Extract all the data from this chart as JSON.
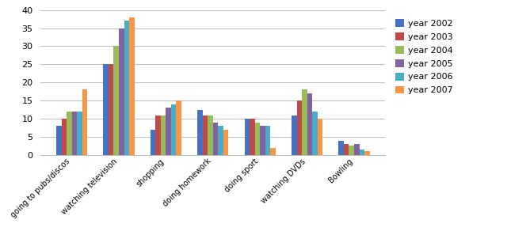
{
  "categories": [
    "going to pubs/discos",
    "watching television",
    "shopping",
    "doing homework",
    "doing sport",
    "watching DVDs",
    "Bowling"
  ],
  "series": {
    "year 2002": [
      8,
      25,
      7,
      12.5,
      10,
      11,
      4
    ],
    "year 2003": [
      10,
      25,
      11,
      11,
      10,
      15,
      3
    ],
    "year 2004": [
      12,
      30,
      11,
      11,
      9,
      18,
      2.5
    ],
    "year 2005": [
      12,
      35,
      13,
      9,
      8,
      17,
      3
    ],
    "year 2006": [
      12,
      37,
      14,
      8,
      8,
      12,
      1.5
    ],
    "year 2007": [
      18,
      38,
      15,
      7,
      2,
      10,
      1
    ]
  },
  "colors": {
    "year 2002": "#4472C4",
    "year 2003": "#BE4B48",
    "year 2004": "#9BBB59",
    "year 2005": "#8064A2",
    "year 2006": "#4BACC6",
    "year 2007": "#F79646"
  },
  "ylim": [
    0,
    40
  ],
  "yticks": [
    0,
    5,
    10,
    15,
    20,
    25,
    30,
    35,
    40
  ],
  "legend_order": [
    "year 2002",
    "year 2003",
    "year 2004",
    "year 2005",
    "year 2006",
    "year 2007"
  ],
  "background_color": "#FFFFFF",
  "grid_color": "#BEBEBE",
  "bar_width": 0.11,
  "figsize": [
    6.4,
    3.16
  ],
  "dpi": 100
}
